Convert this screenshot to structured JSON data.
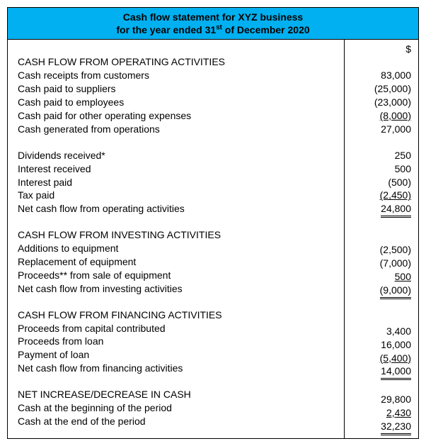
{
  "header": {
    "line1": "Cash flow statement for XYZ business",
    "line2_prefix": "for the year ended 31",
    "line2_sup": "st",
    "line2_suffix": " of December 2020"
  },
  "currency_symbol": "$",
  "sections": {
    "operating": {
      "title": "CASH FLOW FROM OPERATING ACTIVITIES",
      "rows": [
        {
          "label": "Cash receipts from customers",
          "value": "83,000"
        },
        {
          "label": "Cash paid to suppliers",
          "value": "(25,000)"
        },
        {
          "label": "Cash paid to employees",
          "value": "(23,000)"
        },
        {
          "label": "Cash paid for other operating expenses",
          "value": "(8,000)",
          "underline": true
        },
        {
          "label": "Cash generated from operations",
          "value": "27,000"
        }
      ],
      "sub_rows": [
        {
          "label": "Dividends received*",
          "value": "250"
        },
        {
          "label": "Interest received",
          "value": "500"
        },
        {
          "label": "Interest paid",
          "value": "(500)"
        },
        {
          "label": "Tax paid",
          "value": "(2,450)",
          "underline": true
        },
        {
          "label": "Net cash flow from operating activities",
          "value": "24,800",
          "double": true
        }
      ]
    },
    "investing": {
      "title": "CASH FLOW FROM INVESTING ACTIVITIES",
      "rows": [
        {
          "label": "Additions to equipment",
          "value": "(2,500)"
        },
        {
          "label": "Replacement of equipment",
          "value": "(7,000)"
        },
        {
          "label": "Proceeds** from sale of equipment",
          "value": "500",
          "underline": true
        },
        {
          "label": "Net cash flow from investing activities",
          "value": "(9,000)",
          "double": true
        }
      ]
    },
    "financing": {
      "title": "CASH FLOW FROM FINANCING ACTIVITIES",
      "rows": [
        {
          "label": "Proceeds from capital contributed",
          "value": "3,400"
        },
        {
          "label": "Proceeds from loan",
          "value": "16,000"
        },
        {
          "label": "Payment of loan",
          "value": "(5,400)",
          "underline": true
        },
        {
          "label": "Net cash flow from financing activities",
          "value": "14,000",
          "double": true
        }
      ]
    },
    "summary": {
      "rows": [
        {
          "label": "NET INCREASE/DECREASE IN CASH",
          "value": "29,800"
        },
        {
          "label": "Cash at the beginning of the period",
          "value": "2,430",
          "underline": true
        },
        {
          "label": "Cash at the end of the period",
          "value": "32,230",
          "double": true
        }
      ]
    }
  },
  "colors": {
    "header_bg": "#00b0f0",
    "border": "#000000",
    "text": "#000000",
    "background": "#ffffff"
  }
}
